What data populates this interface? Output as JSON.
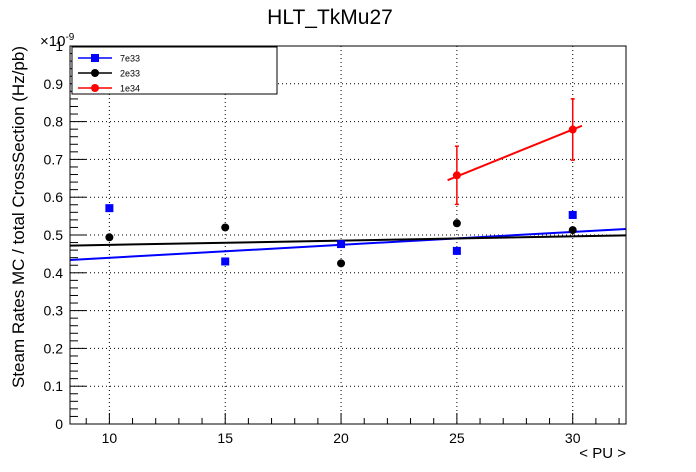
{
  "chart_data": {
    "type": "scatter",
    "title": "HLT_TkMu27",
    "xlabel": "< PU >",
    "ylabel": "Steam Rates MC / total CrossSection (Hz/pb)",
    "y_exponent": "×10",
    "y_exponent_power": "-9",
    "xlim": [
      8.3,
      32.3
    ],
    "ylim": [
      0,
      1
    ],
    "x_ticks": [
      10,
      15,
      20,
      25,
      30
    ],
    "x_tick_labels": [
      "10",
      "15",
      "20",
      "25",
      "30"
    ],
    "y_ticks": [
      0,
      0.1,
      0.2,
      0.3,
      0.4,
      0.5,
      0.6,
      0.7,
      0.8,
      0.9,
      1
    ],
    "y_tick_labels": [
      "0",
      "0.1",
      "0.2",
      "0.3",
      "0.4",
      "0.5",
      "0.6",
      "0.7",
      "0.8",
      "0.9",
      "1"
    ],
    "grid": true,
    "legend_position": "top-left",
    "series": [
      {
        "name": "7e33",
        "color": "#0000ff",
        "marker": "square",
        "x": [
          10,
          15,
          20,
          25,
          30
        ],
        "y": [
          0.571,
          0.43,
          0.476,
          0.458,
          0.553
        ],
        "fit": {
          "x": [
            8.3,
            32.3
          ],
          "y": [
            0.434,
            0.516
          ]
        }
      },
      {
        "name": "2e33",
        "color": "#000000",
        "marker": "circle",
        "x": [
          10,
          15,
          20,
          25,
          30
        ],
        "y": [
          0.494,
          0.52,
          0.425,
          0.531,
          0.513
        ],
        "fit": {
          "x": [
            8.3,
            32.3
          ],
          "y": [
            0.472,
            0.499
          ]
        }
      },
      {
        "name": "1e34",
        "color": "#ff0000",
        "marker": "circle",
        "x": [
          25,
          30
        ],
        "y": [
          0.658,
          0.779
        ],
        "yerr": [
          0.077,
          0.081
        ],
        "fit": {
          "x": [
            24.6,
            30.4
          ],
          "y": [
            0.645,
            0.789
          ]
        }
      }
    ]
  }
}
